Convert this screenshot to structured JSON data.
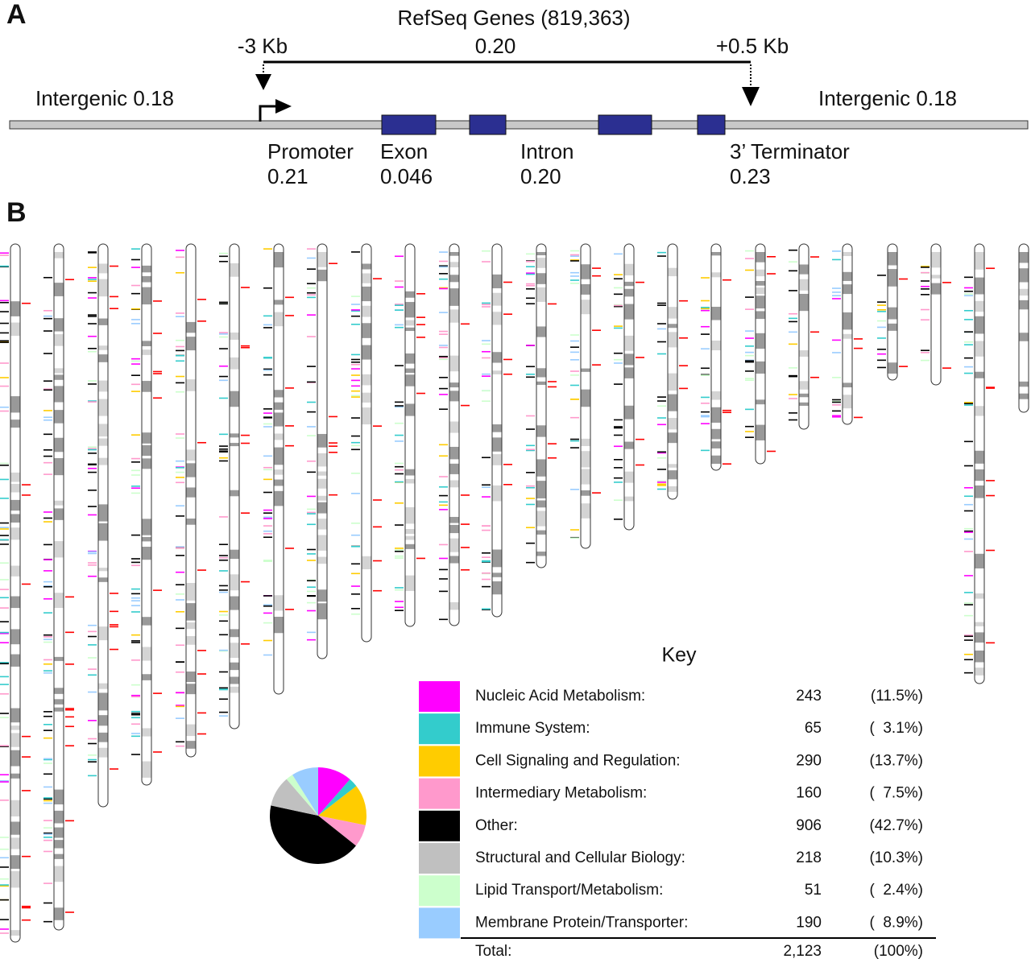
{
  "panel_a": {
    "label": "A",
    "title": "RefSeq Genes (819,363)",
    "upstream": "-3 Kb",
    "downstream": "+0.5 Kb",
    "gene_density": "0.20",
    "intergenic_left": "Intergenic  0.18",
    "intergenic_right": "Intergenic  0.18",
    "regions": [
      {
        "name": "Promoter",
        "density": "0.21"
      },
      {
        "name": "Exon",
        "density": "0.046"
      },
      {
        "name": "Intron",
        "density": "0.20"
      },
      {
        "name": "3’ Terminator",
        "density": "0.23"
      }
    ]
  },
  "panel_b": {
    "label": "B"
  },
  "chart_data": {
    "type": "pie",
    "title": "Key",
    "categories": [
      "Nucleic Acid Metabolism:",
      "Immune System:",
      "Cell Signaling and Regulation:",
      "Intermediary Metabolism:",
      "Other:",
      "Structural and Cellular Biology:",
      "Lipid Transport/Metabolism:",
      "Membrane Protein/Transporter:"
    ],
    "values": [
      243,
      65,
      290,
      160,
      906,
      218,
      51,
      190
    ],
    "percent_labels": [
      "(11.5%)",
      "(  3.1%)",
      "(13.7%)",
      "(  7.5%)",
      "(42.7%)",
      "(10.3%)",
      "(  2.4%)",
      "(  8.9%)"
    ],
    "colors": [
      "#ff00ff",
      "#33cccc",
      "#ffcc00",
      "#ff99cc",
      "#000000",
      "#c0c0c0",
      "#ccffcc",
      "#99ccff"
    ],
    "total": {
      "label": "Total:",
      "value": "2,123",
      "percent": "(100%)"
    }
  }
}
